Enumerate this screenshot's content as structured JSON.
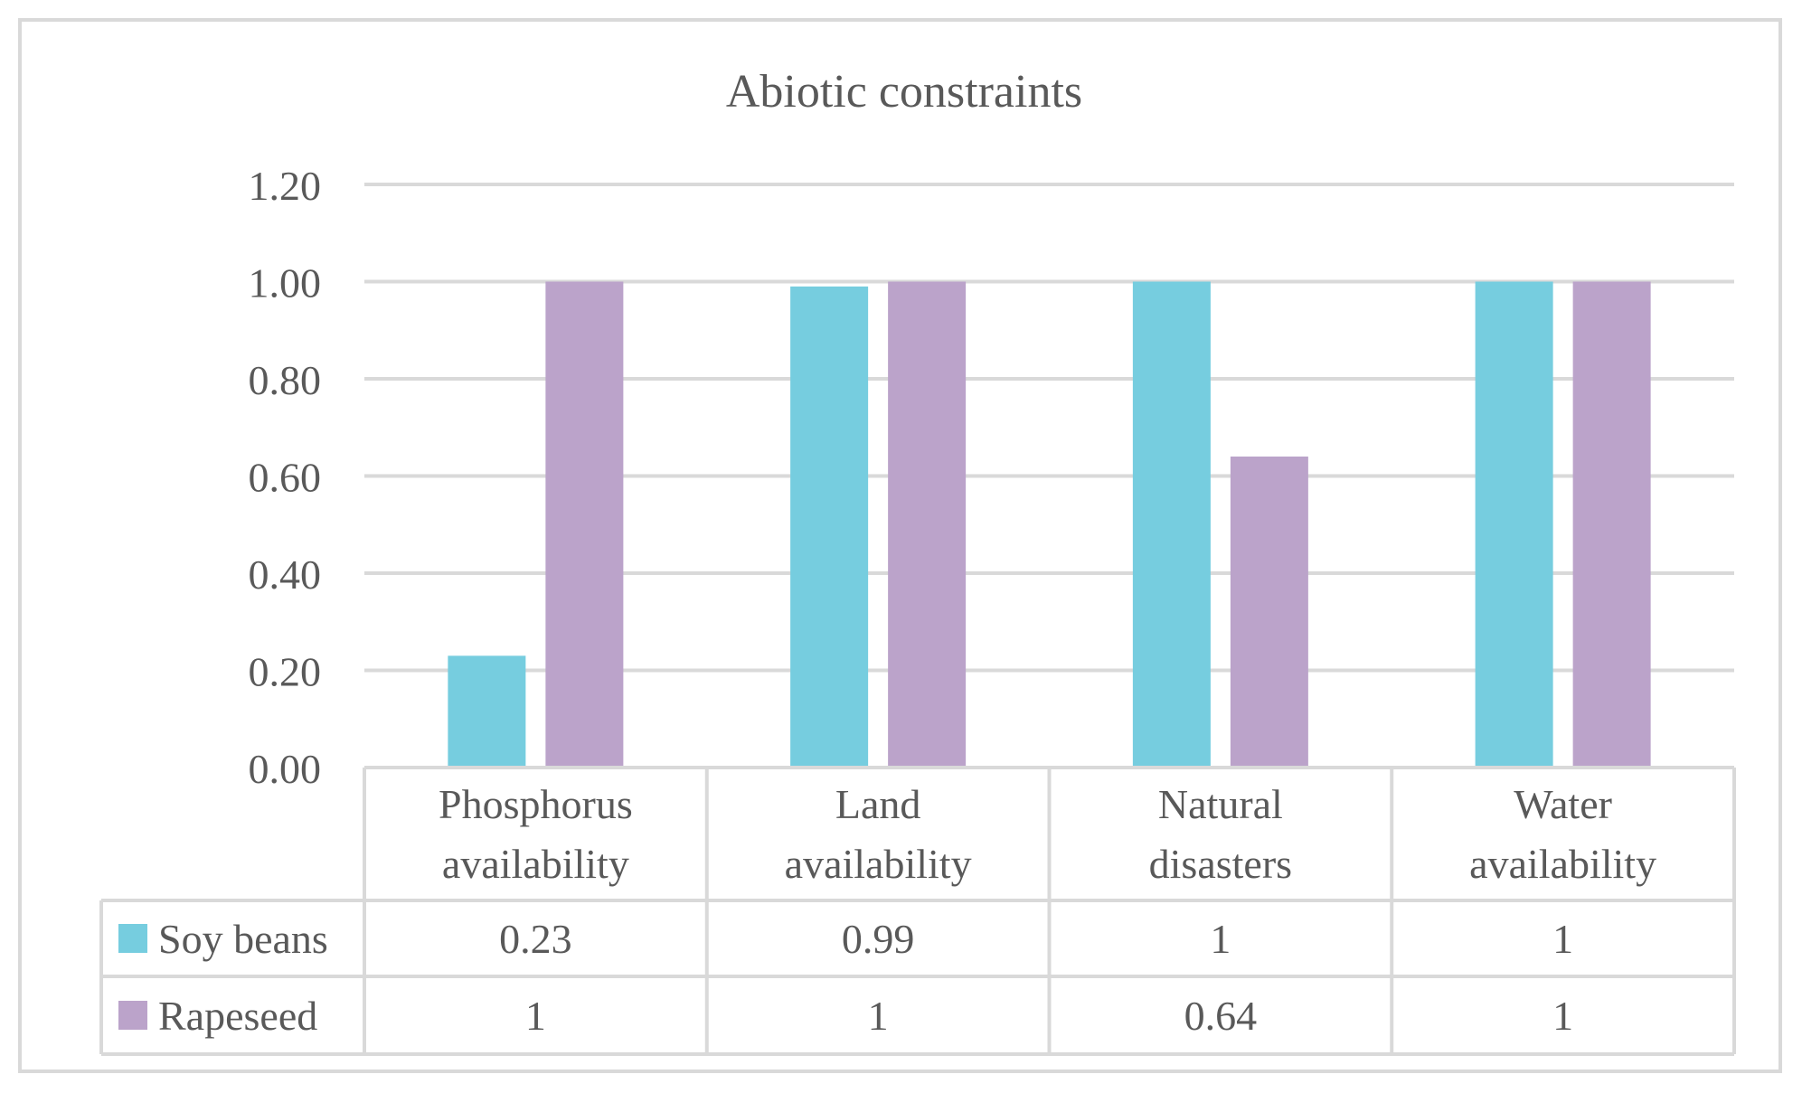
{
  "chart_data": {
    "type": "bar",
    "title": "Abiotic constraints",
    "categories": [
      [
        "Phosphorus",
        "availability"
      ],
      [
        "Land",
        "availability"
      ],
      [
        "Natural",
        "disasters"
      ],
      [
        "Water",
        "availability"
      ]
    ],
    "series": [
      {
        "name": "Soy beans",
        "values": [
          0.23,
          0.99,
          1,
          1
        ],
        "labels": [
          "0.23",
          "0.99",
          "1",
          "1"
        ],
        "color": "#76cddf"
      },
      {
        "name": "Rapeseed",
        "values": [
          1,
          1,
          0.64,
          1
        ],
        "labels": [
          "1",
          "1",
          "0.64",
          "1"
        ],
        "color": "#bba3ca"
      }
    ],
    "ylim": [
      0,
      1.2
    ],
    "yticks": [
      "0.00",
      "0.20",
      "0.40",
      "0.60",
      "0.80",
      "1.00",
      "1.20"
    ],
    "grid": true,
    "legend": "data-table",
    "colors": {
      "gridline": "#d9d9d9",
      "text": "#595959",
      "border": "#d9d9d9"
    }
  }
}
